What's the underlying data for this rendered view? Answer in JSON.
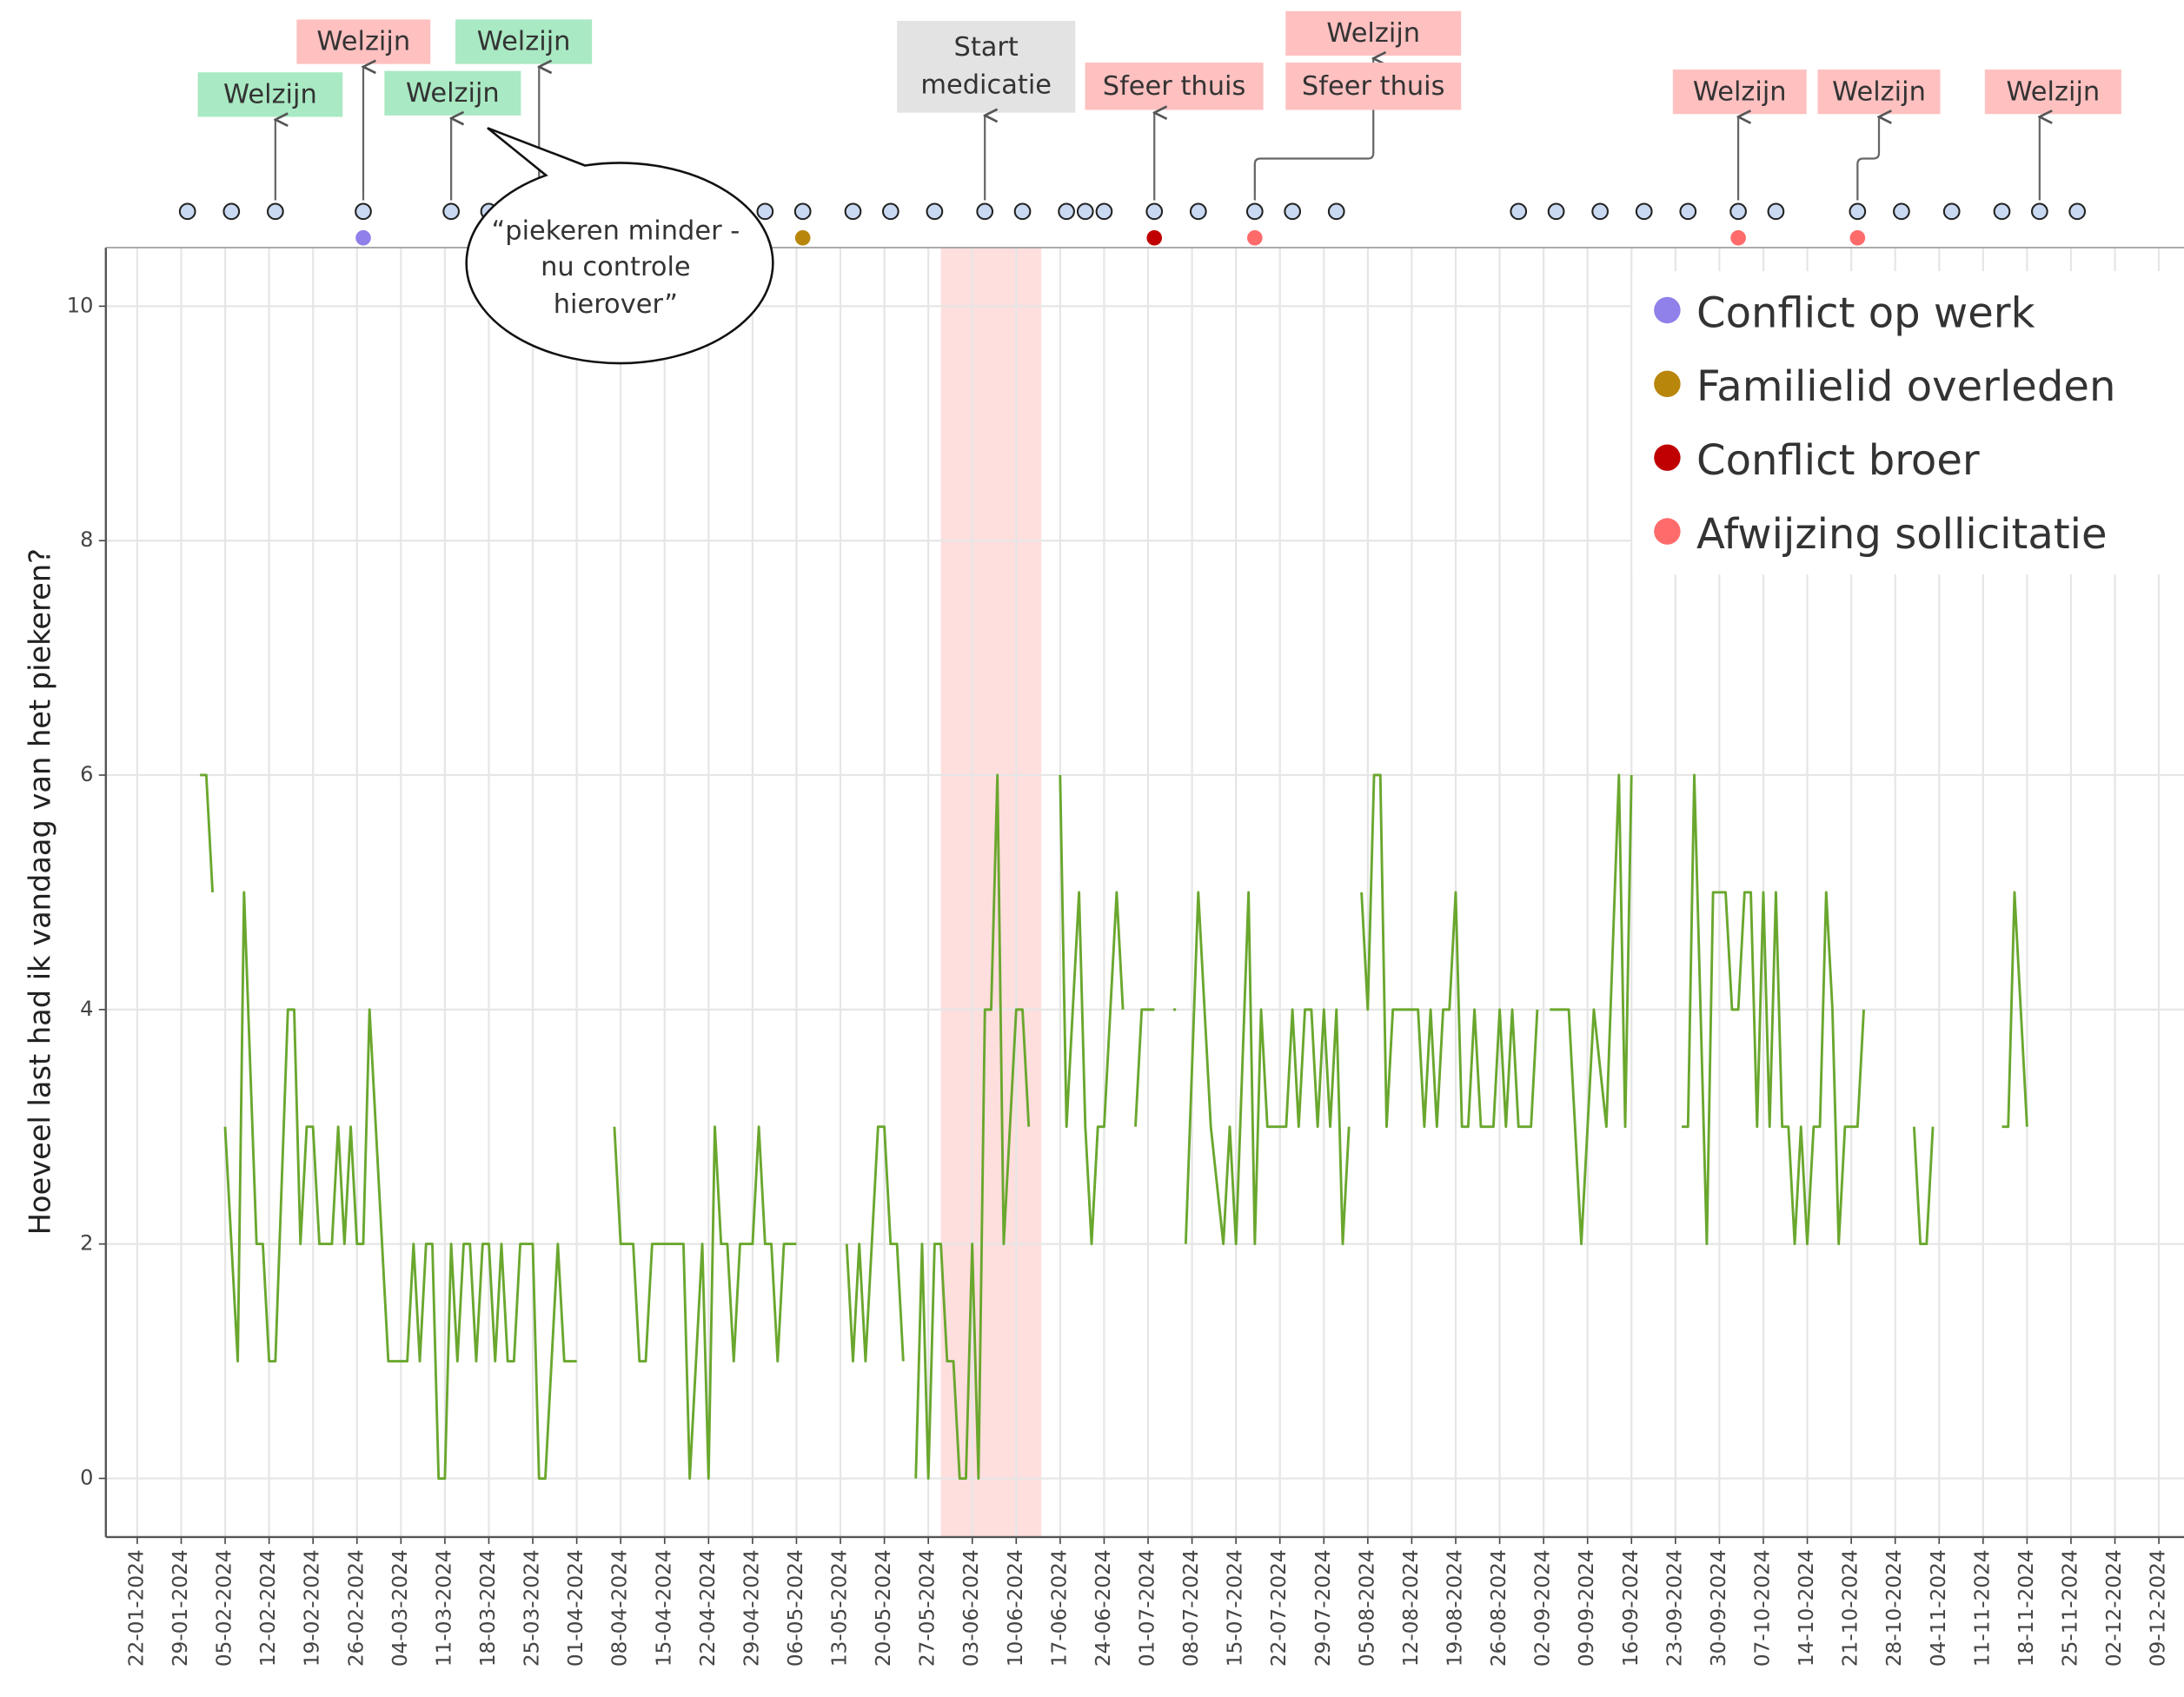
{
  "chart_data": {
    "type": "line",
    "y_label": "Hoeveel last had ik vandaag van het piekeren?",
    "color": "#6aa72e",
    "xlim": [
      "2024-01-17",
      "2024-12-13"
    ],
    "ylim": [
      -0.5,
      10.5
    ],
    "yticks": [
      0,
      2,
      4,
      6,
      8,
      10
    ],
    "grid": true,
    "xticks": [
      {
        "value": "2024-01-22",
        "label": "22-01-2024"
      },
      {
        "value": "2024-01-29",
        "label": "29-01-2024"
      },
      {
        "value": "2024-02-05",
        "label": "05-02-2024"
      },
      {
        "value": "2024-02-12",
        "label": "12-02-2024"
      },
      {
        "value": "2024-02-19",
        "label": "19-02-2024"
      },
      {
        "value": "2024-02-26",
        "label": "26-02-2024"
      },
      {
        "value": "2024-03-04",
        "label": "04-03-2024"
      },
      {
        "value": "2024-03-11",
        "label": "11-03-2024"
      },
      {
        "value": "2024-03-18",
        "label": "18-03-2024"
      },
      {
        "value": "2024-03-25",
        "label": "25-03-2024"
      },
      {
        "value": "2024-04-01",
        "label": "01-04-2024"
      },
      {
        "value": "2024-04-08",
        "label": "08-04-2024"
      },
      {
        "value": "2024-04-15",
        "label": "15-04-2024"
      },
      {
        "value": "2024-04-22",
        "label": "22-04-2024"
      },
      {
        "value": "2024-04-29",
        "label": "29-04-2024"
      },
      {
        "value": "2024-05-06",
        "label": "06-05-2024"
      },
      {
        "value": "2024-05-13",
        "label": "13-05-2024"
      },
      {
        "value": "2024-05-20",
        "label": "20-05-2024"
      },
      {
        "value": "2024-05-27",
        "label": "27-05-2024"
      },
      {
        "value": "2024-06-03",
        "label": "03-06-2024"
      },
      {
        "value": "2024-06-10",
        "label": "10-06-2024"
      },
      {
        "value": "2024-06-17",
        "label": "17-06-2024"
      },
      {
        "value": "2024-06-24",
        "label": "24-06-2024"
      },
      {
        "value": "2024-07-01",
        "label": "01-07-2024"
      },
      {
        "value": "2024-07-08",
        "label": "08-07-2024"
      },
      {
        "value": "2024-07-15",
        "label": "15-07-2024"
      },
      {
        "value": "2024-07-22",
        "label": "22-07-2024"
      },
      {
        "value": "2024-07-29",
        "label": "29-07-2024"
      },
      {
        "value": "2024-08-05",
        "label": "05-08-2024"
      },
      {
        "value": "2024-08-12",
        "label": "12-08-2024"
      },
      {
        "value": "2024-08-19",
        "label": "19-08-2024"
      },
      {
        "value": "2024-08-26",
        "label": "26-08-2024"
      },
      {
        "value": "2024-09-02",
        "label": "02-09-2024"
      },
      {
        "value": "2024-09-09",
        "label": "09-09-2024"
      },
      {
        "value": "2024-09-16",
        "label": "16-09-2024"
      },
      {
        "value": "2024-09-23",
        "label": "23-09-2024"
      },
      {
        "value": "2024-09-30",
        "label": "30-09-2024"
      },
      {
        "value": "2024-10-07",
        "label": "07-10-2024"
      },
      {
        "value": "2024-10-14",
        "label": "14-10-2024"
      },
      {
        "value": "2024-10-21",
        "label": "21-10-2024"
      },
      {
        "value": "2024-10-28",
        "label": "28-10-2024"
      },
      {
        "value": "2024-11-04",
        "label": "04-11-2024"
      },
      {
        "value": "2024-11-11",
        "label": "11-11-2024"
      },
      {
        "value": "2024-11-18",
        "label": "18-11-2024"
      },
      {
        "value": "2024-11-25",
        "label": "25-11-2024"
      },
      {
        "value": "2024-12-02",
        "label": "02-12-2024"
      },
      {
        "value": "2024-12-09",
        "label": "09-12-2024"
      }
    ],
    "x": [
      "2024-02-01",
      "2024-02-02",
      "2024-02-03",
      null,
      "2024-02-05",
      "2024-02-07",
      "2024-02-08",
      "2024-02-10",
      "2024-02-11",
      "2024-02-12",
      "2024-02-13",
      "2024-02-15",
      "2024-02-16",
      "2024-02-17",
      "2024-02-18",
      "2024-02-19",
      "2024-02-20",
      "2024-02-22",
      "2024-02-23",
      "2024-02-24",
      "2024-02-25",
      "2024-02-26",
      "2024-02-27",
      "2024-02-28",
      "2024-03-01",
      "2024-03-02",
      "2024-03-05",
      "2024-03-06",
      "2024-03-07",
      "2024-03-08",
      "2024-03-09",
      "2024-03-10",
      "2024-03-11",
      "2024-03-12",
      "2024-03-13",
      "2024-03-14",
      "2024-03-15",
      "2024-03-16",
      "2024-03-17",
      "2024-03-18",
      "2024-03-19",
      "2024-03-20",
      "2024-03-21",
      "2024-03-22",
      "2024-03-23",
      "2024-03-25",
      "2024-03-26",
      "2024-03-27",
      "2024-03-29",
      "2024-03-30",
      "2024-04-01",
      null,
      "2024-04-07",
      "2024-04-08",
      "2024-04-10",
      "2024-04-11",
      "2024-04-12",
      "2024-04-13",
      "2024-04-18",
      "2024-04-19",
      "2024-04-21",
      "2024-04-22",
      "2024-04-23",
      "2024-04-24",
      "2024-04-25",
      "2024-04-26",
      "2024-04-27",
      "2024-04-29",
      "2024-04-30",
      "2024-05-01",
      "2024-05-02",
      "2024-05-03",
      "2024-05-04",
      "2024-05-06",
      null,
      "2024-05-14",
      "2024-05-15",
      "2024-05-16",
      "2024-05-17",
      "2024-05-19",
      "2024-05-20",
      "2024-05-21",
      "2024-05-22",
      "2024-05-23",
      null,
      "2024-05-25",
      "2024-05-26",
      "2024-05-27",
      "2024-05-28",
      "2024-05-29",
      "2024-05-30",
      "2024-05-31",
      "2024-06-01",
      "2024-06-02",
      "2024-06-03",
      "2024-06-04",
      "2024-06-05",
      "2024-06-06",
      "2024-06-07",
      "2024-06-08",
      "2024-06-10",
      "2024-06-11",
      "2024-06-12",
      null,
      "2024-06-17",
      "2024-06-18",
      "2024-06-20",
      "2024-06-21",
      "2024-06-22",
      "2024-06-23",
      "2024-06-24",
      "2024-06-26",
      "2024-06-27",
      null,
      "2024-06-29",
      "2024-06-30",
      "2024-07-02",
      null,
      "2024-07-05",
      null,
      "2024-07-07",
      "2024-07-09",
      "2024-07-11",
      "2024-07-13",
      "2024-07-14",
      "2024-07-15",
      "2024-07-17",
      "2024-07-18",
      "2024-07-19",
      "2024-07-20",
      "2024-07-23",
      "2024-07-24",
      "2024-07-25",
      "2024-07-26",
      "2024-07-27",
      "2024-07-28",
      "2024-07-29",
      "2024-07-30",
      "2024-07-31",
      "2024-08-01",
      "2024-08-02",
      null,
      "2024-08-04",
      "2024-08-05",
      "2024-08-06",
      "2024-08-07",
      "2024-08-08",
      "2024-08-09",
      "2024-08-13",
      "2024-08-14",
      "2024-08-15",
      "2024-08-16",
      "2024-08-17",
      "2024-08-18",
      "2024-08-19",
      "2024-08-20",
      "2024-08-21",
      "2024-08-22",
      "2024-08-23",
      "2024-08-25",
      "2024-08-26",
      "2024-08-27",
      "2024-08-28",
      "2024-08-29",
      "2024-08-31",
      "2024-09-01",
      null,
      "2024-09-03",
      "2024-09-06",
      "2024-09-08",
      "2024-09-10",
      "2024-09-12",
      "2024-09-14",
      "2024-09-15",
      "2024-09-16",
      null,
      "2024-09-24",
      "2024-09-25",
      "2024-09-26",
      "2024-09-28",
      "2024-09-29",
      "2024-10-01",
      "2024-10-02",
      "2024-10-03",
      "2024-10-04",
      "2024-10-05",
      "2024-10-06",
      "2024-10-07",
      "2024-10-08",
      "2024-10-09",
      "2024-10-10",
      "2024-10-11",
      "2024-10-12",
      "2024-10-13",
      "2024-10-14",
      "2024-10-15",
      "2024-10-16",
      "2024-10-17",
      "2024-10-18",
      "2024-10-19",
      "2024-10-20",
      "2024-10-22",
      "2024-10-23",
      null,
      "2024-10-31",
      "2024-11-01",
      "2024-11-02",
      "2024-11-03",
      null,
      "2024-11-14",
      "2024-11-15",
      "2024-11-16",
      "2024-11-17",
      "2024-11-18"
    ],
    "values": [
      6,
      6,
      5,
      null,
      3,
      1,
      5,
      2,
      2,
      1,
      1,
      4,
      4,
      2,
      3,
      3,
      2,
      2,
      3,
      2,
      3,
      2,
      2,
      4,
      2,
      1,
      1,
      2,
      1,
      2,
      2,
      0,
      0,
      2,
      1,
      2,
      2,
      1,
      2,
      2,
      1,
      2,
      1,
      1,
      2,
      2,
      0,
      0,
      2,
      1,
      1,
      null,
      3,
      2,
      2,
      1,
      1,
      2,
      2,
      0,
      2,
      0,
      3,
      2,
      2,
      1,
      2,
      2,
      3,
      2,
      2,
      1,
      2,
      2,
      null,
      2,
      1,
      2,
      1,
      3,
      3,
      2,
      2,
      1,
      null,
      0,
      2,
      0,
      2,
      2,
      1,
      1,
      0,
      0,
      2,
      0,
      4,
      4,
      6,
      2,
      4,
      4,
      3,
      null,
      6,
      3,
      5,
      3,
      2,
      3,
      3,
      5,
      4,
      null,
      3,
      4,
      4,
      null,
      4,
      null,
      2,
      5,
      3,
      2,
      3,
      2,
      5,
      2,
      4,
      3,
      3,
      4,
      3,
      4,
      4,
      3,
      4,
      3,
      4,
      2,
      3,
      null,
      5,
      4,
      6,
      6,
      3,
      4,
      4,
      3,
      4,
      3,
      4,
      4,
      5,
      3,
      3,
      4,
      3,
      3,
      4,
      3,
      4,
      3,
      3,
      4,
      null,
      4,
      4,
      2,
      4,
      3,
      6,
      3,
      6,
      null,
      3,
      3,
      6,
      2,
      5,
      5,
      4,
      4,
      5,
      5,
      3,
      5,
      3,
      5,
      3,
      3,
      2,
      3,
      2,
      3,
      3,
      5,
      4,
      2,
      3,
      3,
      4,
      null,
      3,
      2,
      2,
      3,
      null,
      3,
      3,
      5,
      4,
      3
    ],
    "shaded_region": {
      "x": [
        "2024-05-29",
        "2024-06-14"
      ],
      "color": "#ffc8c8"
    },
    "measurement_dates": [
      "2024-01-30",
      "2024-02-06",
      "2024-02-13",
      "2024-02-27",
      "2024-03-12",
      "2024-03-18",
      "2024-03-26",
      "2024-05-01",
      "2024-05-07",
      "2024-05-15",
      "2024-05-21",
      "2024-05-28",
      "2024-06-05",
      "2024-06-11",
      "2024-06-18",
      "2024-06-21",
      "2024-06-24",
      "2024-07-02",
      "2024-07-09",
      "2024-07-18",
      "2024-07-24",
      "2024-07-31",
      "2024-08-29",
      "2024-09-04",
      "2024-09-11",
      "2024-09-18",
      "2024-09-25",
      "2024-10-03",
      "2024-10-09",
      "2024-10-22",
      "2024-10-29",
      "2024-11-06",
      "2024-11-14",
      "2024-11-20",
      "2024-11-26"
    ],
    "events": [
      {
        "name": "Conflict op werk",
        "color": "#8f80ea",
        "dates": [
          "2024-02-27"
        ]
      },
      {
        "name": "Familielid overleden",
        "color": "#b8860b",
        "dates": [
          "2024-05-07"
        ]
      },
      {
        "name": "Conflict broer",
        "color": "#c00000",
        "dates": [
          "2024-07-02"
        ]
      },
      {
        "name": "Afwijzing sollicitatie",
        "color": "#ff6b6b",
        "dates": [
          "2024-07-18",
          "2024-10-03",
          "2024-10-22"
        ]
      }
    ],
    "legend_position": "top-right",
    "annotations": [
      {
        "text": "Welzijn",
        "x": "2024-02-13",
        "color": "#a9e9c3"
      },
      {
        "text": "Welzijn",
        "x": "2024-02-27",
        "color": "#ffc0c0"
      },
      {
        "text": "Welzijn",
        "x": "2024-03-12",
        "color": "#a9e9c3"
      },
      {
        "text": "Welzijn",
        "x": "2024-03-26",
        "color": "#a9e9c3"
      },
      {
        "text": "Start medicatie",
        "x": "2024-06-05",
        "color": "#e3e3e3"
      },
      {
        "text": "Sfeer thuis",
        "x": "2024-07-02",
        "color": "#ffc0c0"
      },
      {
        "text": "Welzijn",
        "x": "2024-07-18",
        "color": "#ffc0c0"
      },
      {
        "text": "Sfeer thuis",
        "x": "2024-07-18",
        "color": "#ffc0c0"
      },
      {
        "text": "Welzijn",
        "x": "2024-10-03",
        "color": "#ffc0c0"
      },
      {
        "text": "Welzijn",
        "x": "2024-10-22",
        "color": "#ffc0c0"
      },
      {
        "text": "Welzijn",
        "x": "2024-11-20",
        "color": "#ffc0c0"
      }
    ],
    "callout": "“piekeren minder - nu controle hierover”"
  }
}
